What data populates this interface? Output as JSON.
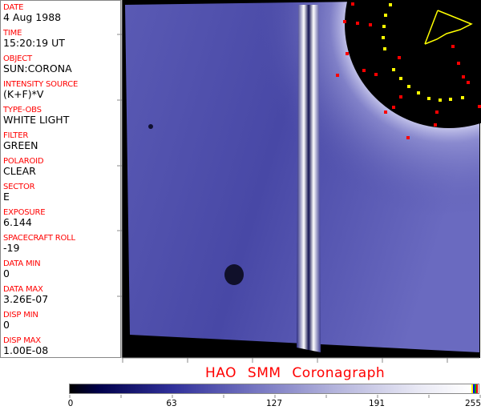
{
  "fields": [
    {
      "label": "DATE",
      "value": "4 Aug 1988"
    },
    {
      "label": "TIME",
      "value": "15:20:19 UT"
    },
    {
      "label": "OBJECT",
      "value": "SUN:CORONA"
    },
    {
      "label": "INTENSITY SOURCE",
      "value": "(K+F)*V"
    },
    {
      "label": "TYPE-OBS",
      "value": "WHITE LIGHT"
    },
    {
      "label": "FILTER",
      "value": "GREEN"
    },
    {
      "label": "POLAROID",
      "value": "CLEAR"
    },
    {
      "label": "SECTOR",
      "value": "E"
    },
    {
      "label": "EXPOSURE",
      "value": "6.144"
    },
    {
      "label": "SPACECRAFT ROLL",
      "value": "-19"
    },
    {
      "label": "DATA MIN",
      "value": "0"
    },
    {
      "label": "DATA MAX",
      "value": "3.26E-07"
    },
    {
      "label": "DISP MIN",
      "value": "0"
    },
    {
      "label": "DISP MAX",
      "value": "1.00E-08"
    }
  ],
  "title": "HAO  SMM Coronagraph",
  "colorbar": {
    "ticks": [
      "0",
      "63",
      "127",
      "191",
      "255"
    ],
    "colors": {
      "low": "#000000",
      "mid": "#7474c0",
      "high": "#ffffff"
    }
  },
  "colors": {
    "label": "#ff0000",
    "overlay_red": "#ff0000",
    "overlay_yellow": "#ffff00",
    "corona": "#3a3a9a"
  }
}
